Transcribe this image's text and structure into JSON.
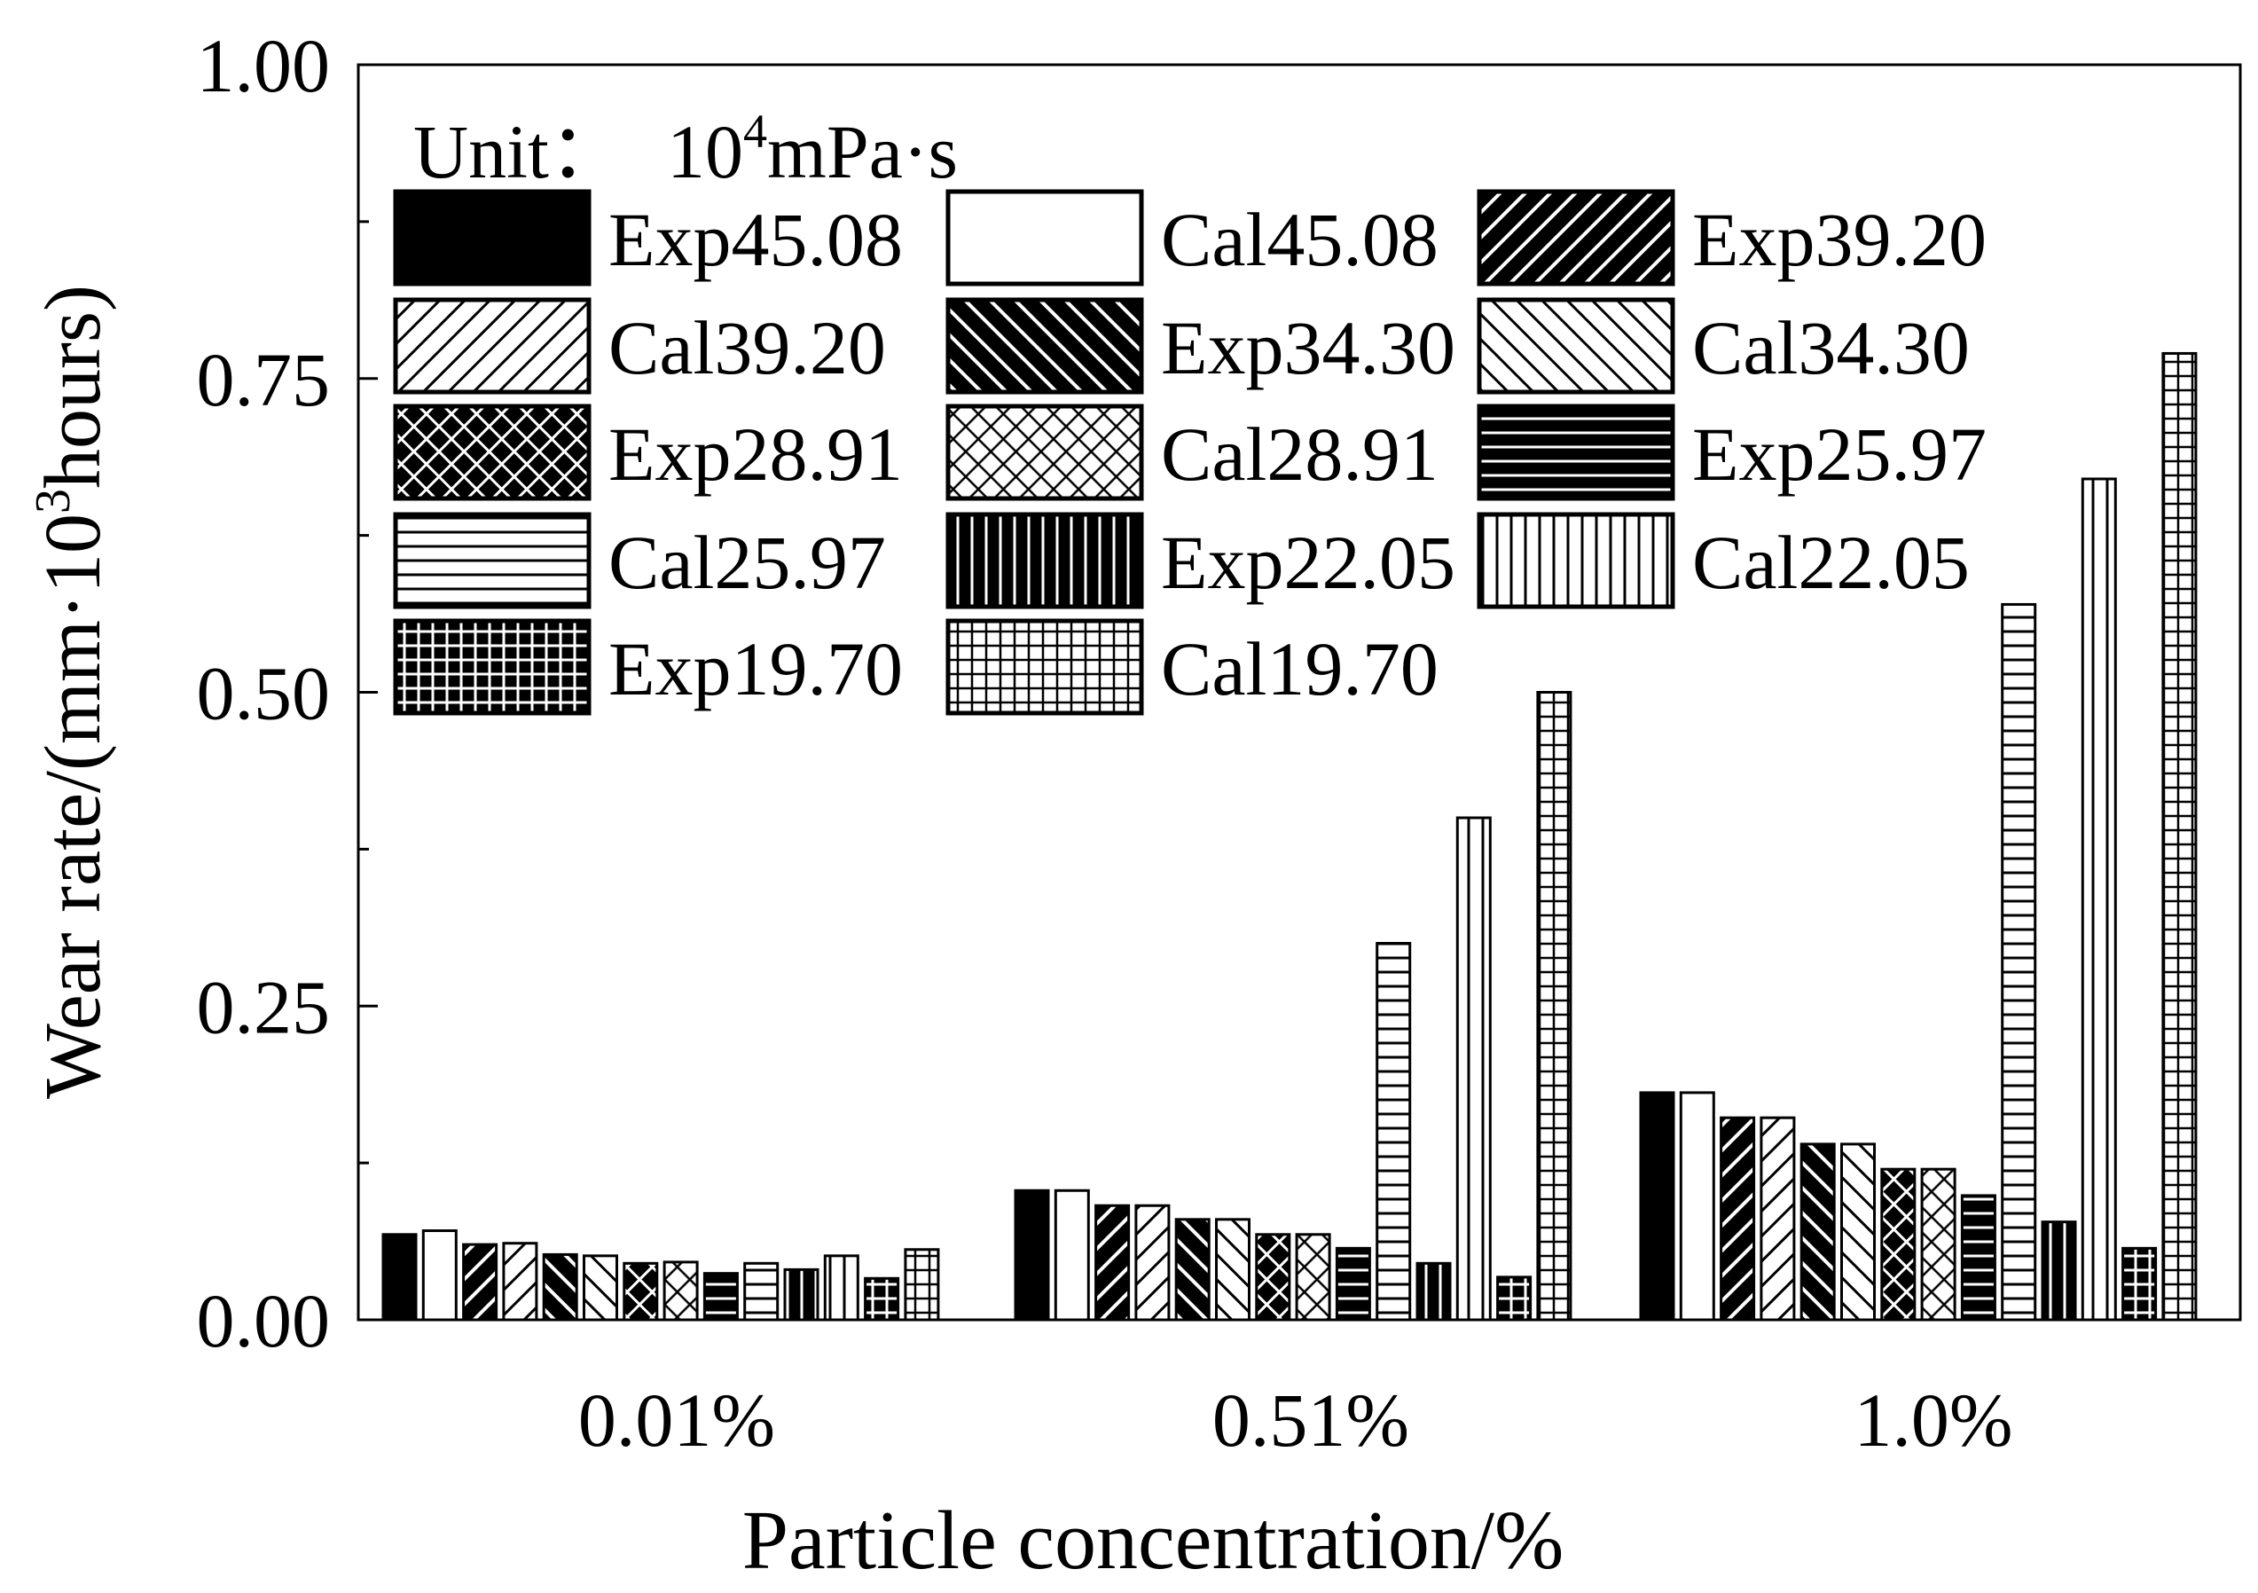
{
  "chart_data": {
    "type": "bar",
    "title": "",
    "xlabel": "Particle concentration/%",
    "ylabel": {
      "prefix": "Wear rate/(mm·10",
      "sup": "3",
      "suffix": "hours)"
    },
    "ylim": [
      0,
      1.0
    ],
    "yticks": [
      "0.00",
      "0.25",
      "0.50",
      "0.75",
      "1.00"
    ],
    "grid": false,
    "legend_position": "top-left",
    "unit_note": {
      "label": "Unit：",
      "base": "10",
      "sup": "4",
      "suffix": "mPa·s"
    },
    "categories": [
      "0.01%",
      "0.51%",
      "1.0%"
    ],
    "series": [
      {
        "name": "Exp45.08",
        "pattern": "solid",
        "values": [
          0.068,
          0.103,
          0.181
        ]
      },
      {
        "name": "Cal45.08",
        "pattern": "empty",
        "values": [
          0.071,
          0.103,
          0.181
        ]
      },
      {
        "name": "Exp39.20",
        "pattern": "diag-right-dark",
        "values": [
          0.06,
          0.091,
          0.161
        ]
      },
      {
        "name": "Cal39.20",
        "pattern": "diag-right-light",
        "values": [
          0.061,
          0.091,
          0.161
        ]
      },
      {
        "name": "Exp34.30",
        "pattern": "diag-left-dark",
        "values": [
          0.052,
          0.08,
          0.14
        ]
      },
      {
        "name": "Cal34.30",
        "pattern": "diag-left-light",
        "values": [
          0.051,
          0.08,
          0.14
        ]
      },
      {
        "name": "Exp28.91",
        "pattern": "cross-dark",
        "values": [
          0.045,
          0.068,
          0.12
        ]
      },
      {
        "name": "Cal28.91",
        "pattern": "cross-light",
        "values": [
          0.046,
          0.068,
          0.12
        ]
      },
      {
        "name": "Exp25.97",
        "pattern": "horiz-dark",
        "values": [
          0.037,
          0.057,
          0.099
        ]
      },
      {
        "name": "Cal25.97",
        "pattern": "horiz-light",
        "values": [
          0.045,
          0.3,
          0.57
        ]
      },
      {
        "name": "Exp22.05",
        "pattern": "vert-dark",
        "values": [
          0.04,
          0.045,
          0.078
        ]
      },
      {
        "name": "Cal22.05",
        "pattern": "vert-light",
        "values": [
          0.051,
          0.4,
          0.67
        ]
      },
      {
        "name": "Exp19.70",
        "pattern": "grid-dark",
        "values": [
          0.033,
          0.034,
          0.057
        ]
      },
      {
        "name": "Cal19.70",
        "pattern": "grid-light",
        "values": [
          0.056,
          0.5,
          0.77
        ]
      }
    ]
  }
}
